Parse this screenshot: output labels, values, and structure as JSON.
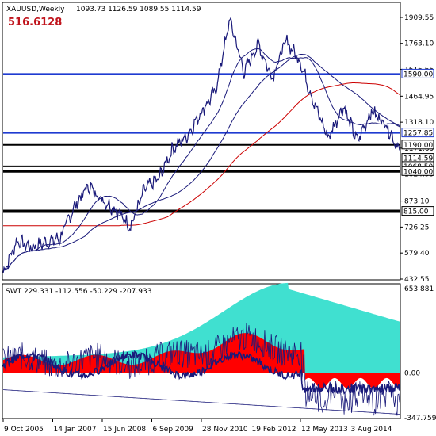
{
  "window": {
    "symbol_title": "XAUUSD,Weekly",
    "ohlc": "1093.73 1126.59 1089.55 1114.59",
    "overlay_value": "516.6128"
  },
  "price_axis": {
    "ticks": [
      "1909.55",
      "1763.10",
      "1616.65",
      "1464.95",
      "1318.10",
      "1171.65",
      "1024.95",
      "873.10",
      "726.25",
      "579.40",
      "432.55"
    ],
    "min": 432.55,
    "max": 1909.55
  },
  "level_labels": [
    {
      "text": "1590.00",
      "color": "#1f3bd1"
    },
    {
      "text": "1257.85",
      "color": "#1f3bd1"
    },
    {
      "text": "1190.00",
      "color": "#000000"
    },
    {
      "text": "1114.59",
      "color": "#000000"
    },
    {
      "text": "1068.50",
      "color": "#000000"
    },
    {
      "text": "1040.00",
      "color": "#000000"
    },
    {
      "text": "815.00",
      "color": "#000000"
    }
  ],
  "indicator": {
    "title": "SWT 229.331 -112.556 -50.229 -207.933",
    "ticks": [
      "653.881",
      "0.00",
      "-347.759"
    ],
    "min": -347.759,
    "max": 653.881
  },
  "time_axis": {
    "labels": [
      "9 Oct 2005",
      "14 Jan 2007",
      "15 Jun 2008",
      "6 Sep 2009",
      "28 Nov 2010",
      "19 Feb 2012",
      "12 May 2013",
      "3 Aug 2014"
    ]
  },
  "colors": {
    "price_line": "#1a1a7a",
    "ma_fast": "#1a1a7a",
    "ma_slow": "#cc0000",
    "support_blue": "#1f3bd1",
    "support_black": "#000000",
    "swt_cyan": "#40e0d0",
    "swt_red": "#ff0000",
    "swt_line": "#1a1a7a"
  },
  "chart_data": {
    "type": "line",
    "title": "XAUUSD,Weekly",
    "x": [
      "2005-10",
      "2006-05",
      "2006-08",
      "2007-01",
      "2007-06",
      "2007-12",
      "2008-03",
      "2008-06",
      "2008-09",
      "2008-11",
      "2009-03",
      "2009-09",
      "2009-12",
      "2010-06",
      "2010-11",
      "2011-04",
      "2011-09",
      "2011-12",
      "2012-02",
      "2012-06",
      "2012-10",
      "2013-01",
      "2013-04",
      "2013-06",
      "2013-09",
      "2013-12",
      "2014-03",
      "2014-07",
      "2014-11"
    ],
    "series": [
      {
        "values": [
          470,
          650,
          610,
          640,
          660,
          840,
          960,
          880,
          820,
          730,
          940,
          1000,
          1170,
          1240,
          1380,
          1500,
          1900,
          1600,
          1760,
          1570,
          1780,
          1660,
          1420,
          1230,
          1410,
          1210,
          1380,
          1310,
          1160
        ]
      }
    ],
    "horizontal_levels": [
      1590.0,
      1257.85,
      1190.0,
      1068.5,
      1040.0,
      815.0
    ],
    "ylim": [
      432.55,
      1909.55
    ]
  }
}
